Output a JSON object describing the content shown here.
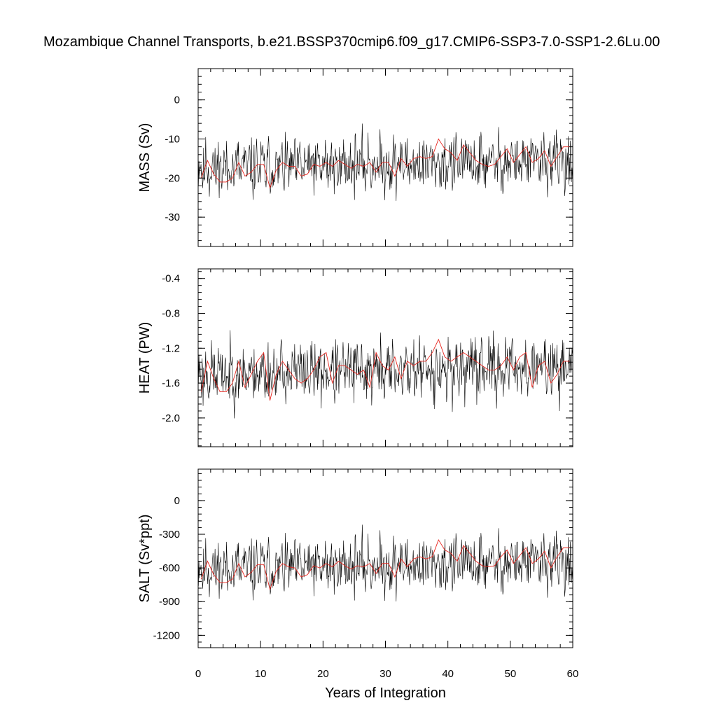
{
  "title": "Mozambique Channel Transports, b.e21.BSSP370cmip6.f09_g17.CMIP6-SSP3-7.0-SSP1-2.6Lu.00",
  "colors": {
    "raw_series": "#000000",
    "smoothed_series": "#e8261f",
    "background": "#ffffff"
  },
  "chart_data": [
    {
      "type": "line",
      "ylabel": "MASS (Sv)",
      "xlabel": "",
      "xlim": [
        0,
        60
      ],
      "ylim": [
        -37.5,
        8
      ],
      "yticks": [
        0,
        -10,
        -20,
        -30
      ],
      "ytick_labels": [
        "0",
        "-10",
        "-20",
        "-30"
      ],
      "grid": false,
      "series": [
        {
          "style": "raw",
          "color": "#000000",
          "mean": -17.5,
          "amplitude": 5.5,
          "seed": 11,
          "n_months": 720
        },
        {
          "style": "smoothed",
          "color": "#e8261f",
          "x": [
            0.5,
            1.5,
            2.5,
            3.5,
            4.5,
            5.5,
            6.5,
            7.5,
            8.5,
            9.5,
            10.5,
            11.5,
            12.5,
            13.5,
            14.5,
            15.5,
            16.5,
            17.5,
            18.5,
            19.5,
            20.5,
            21.5,
            22.5,
            23.5,
            24.5,
            25.5,
            26.5,
            27.5,
            28.5,
            29.5,
            30.5,
            31.5,
            32.5,
            33.5,
            34.5,
            35.5,
            36.5,
            37.5,
            38.5,
            39.5,
            40.5,
            41.5,
            42.5,
            43.5,
            44.5,
            45.5,
            46.5,
            47.5,
            48.5,
            49.5,
            50.5,
            51.5,
            52.5,
            53.5,
            54.5,
            55.5,
            56.5,
            57.5,
            58.5,
            59.5
          ],
          "y": [
            -20,
            -15.5,
            -19,
            -21,
            -21,
            -20,
            -16,
            -19.5,
            -18.5,
            -16.5,
            -16.5,
            -22.5,
            -18,
            -16,
            -17,
            -17,
            -19.5,
            -19,
            -16.5,
            -17,
            -16,
            -17,
            -15.5,
            -16.5,
            -17.5,
            -16.5,
            -17,
            -16,
            -18.5,
            -16,
            -16,
            -19.5,
            -15,
            -17,
            -15,
            -14.5,
            -15,
            -14.5,
            -10,
            -12.5,
            -13.5,
            -15.5,
            -11.5,
            -13.5,
            -15.5,
            -16.5,
            -17,
            -16.5,
            -14.5,
            -12.5,
            -16,
            -14,
            -12,
            -16,
            -15,
            -13,
            -17,
            -14.5,
            -12,
            -12
          ]
        }
      ]
    },
    {
      "type": "line",
      "ylabel": "HEAT (PW)",
      "xlabel": "",
      "xlim": [
        0,
        60
      ],
      "ylim": [
        -2.33,
        -0.29
      ],
      "yticks": [
        -0.4,
        -0.8,
        -1.2,
        -1.6,
        -2.0
      ],
      "ytick_labels": [
        "-0.4",
        "-0.8",
        "-1.2",
        "-1.6",
        "-2.0"
      ],
      "grid": false,
      "series": [
        {
          "style": "raw",
          "color": "#000000",
          "mean": -1.5,
          "amplitude": 0.26,
          "seed": 23,
          "n_months": 720
        },
        {
          "style": "smoothed",
          "color": "#e8261f",
          "x": [
            0.5,
            1.5,
            2.5,
            3.5,
            4.5,
            5.5,
            6.5,
            7.5,
            8.5,
            9.5,
            10.5,
            11.5,
            12.5,
            13.5,
            14.5,
            15.5,
            16.5,
            17.5,
            18.5,
            19.5,
            20.5,
            21.5,
            22.5,
            23.5,
            24.5,
            25.5,
            26.5,
            27.5,
            28.5,
            29.5,
            30.5,
            31.5,
            32.5,
            33.5,
            34.5,
            35.5,
            36.5,
            37.5,
            38.5,
            39.5,
            40.5,
            41.5,
            42.5,
            43.5,
            44.5,
            45.5,
            46.5,
            47.5,
            48.5,
            49.5,
            50.5,
            51.5,
            52.5,
            53.5,
            54.5,
            55.5,
            56.5,
            57.5,
            58.5,
            59.5
          ],
          "y": [
            -1.7,
            -1.35,
            -1.55,
            -1.7,
            -1.7,
            -1.6,
            -1.35,
            -1.65,
            -1.5,
            -1.35,
            -1.25,
            -1.8,
            -1.5,
            -1.35,
            -1.45,
            -1.55,
            -1.6,
            -1.55,
            -1.45,
            -1.3,
            -1.25,
            -1.6,
            -1.4,
            -1.4,
            -1.45,
            -1.5,
            -1.45,
            -1.65,
            -1.25,
            -1.4,
            -1.45,
            -1.3,
            -1.55,
            -1.35,
            -1.4,
            -1.35,
            -1.35,
            -1.25,
            -1.1,
            -1.3,
            -1.35,
            -1.3,
            -1.25,
            -1.3,
            -1.35,
            -1.4,
            -1.45,
            -1.45,
            -1.4,
            -1.3,
            -1.45,
            -1.3,
            -1.25,
            -1.65,
            -1.4,
            -1.35,
            -1.6,
            -1.5,
            -1.35,
            -1.35
          ]
        }
      ]
    },
    {
      "type": "line",
      "ylabel": "SALT (Sv*ppt)",
      "xlabel": "Years of Integration",
      "xlim": [
        0,
        60
      ],
      "xticks": [
        0,
        10,
        20,
        30,
        40,
        50,
        60
      ],
      "xtick_labels": [
        "0",
        "10",
        "20",
        "30",
        "40",
        "50",
        "60"
      ],
      "ylim": [
        -1310,
        280
      ],
      "yticks": [
        0,
        -300,
        -600,
        -900,
        -1200
      ],
      "ytick_labels": [
        "0",
        "-300",
        "-600",
        "-900",
        "-1200"
      ],
      "grid": false,
      "series": [
        {
          "style": "raw",
          "color": "#000000",
          "mean": -610,
          "amplitude": 190,
          "seed": 11,
          "n_months": 720
        },
        {
          "style": "smoothed",
          "color": "#e8261f",
          "x": [
            0.5,
            1.5,
            2.5,
            3.5,
            4.5,
            5.5,
            6.5,
            7.5,
            8.5,
            9.5,
            10.5,
            11.5,
            12.5,
            13.5,
            14.5,
            15.5,
            16.5,
            17.5,
            18.5,
            19.5,
            20.5,
            21.5,
            22.5,
            23.5,
            24.5,
            25.5,
            26.5,
            27.5,
            28.5,
            29.5,
            30.5,
            31.5,
            32.5,
            33.5,
            34.5,
            35.5,
            36.5,
            37.5,
            38.5,
            39.5,
            40.5,
            41.5,
            42.5,
            43.5,
            44.5,
            45.5,
            46.5,
            47.5,
            48.5,
            49.5,
            50.5,
            51.5,
            52.5,
            53.5,
            54.5,
            55.5,
            56.5,
            57.5,
            58.5,
            59.5
          ],
          "y": [
            -700,
            -540,
            -660,
            -730,
            -730,
            -700,
            -560,
            -680,
            -640,
            -570,
            -570,
            -790,
            -630,
            -560,
            -590,
            -600,
            -680,
            -660,
            -580,
            -600,
            -560,
            -590,
            -540,
            -580,
            -610,
            -580,
            -590,
            -560,
            -650,
            -560,
            -560,
            -680,
            -520,
            -590,
            -520,
            -500,
            -520,
            -500,
            -350,
            -440,
            -470,
            -540,
            -400,
            -470,
            -540,
            -580,
            -590,
            -580,
            -500,
            -440,
            -560,
            -490,
            -420,
            -560,
            -520,
            -450,
            -600,
            -500,
            -420,
            -420
          ]
        }
      ]
    }
  ]
}
